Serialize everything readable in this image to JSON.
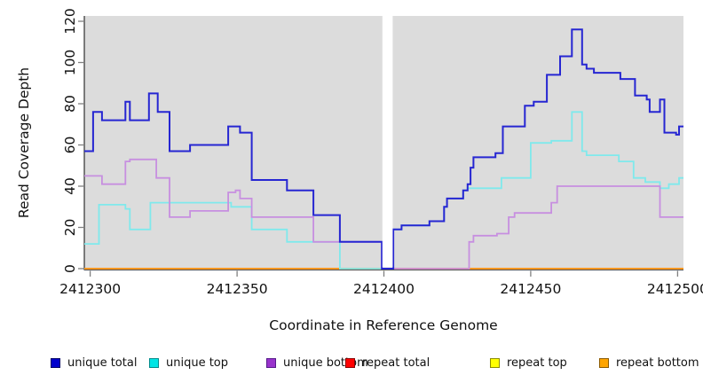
{
  "chart_data": {
    "type": "line",
    "subtype": "step-after-coverage-plot",
    "title": "",
    "xlabel": "Coordinate in Reference Genome",
    "ylabel": "Read Coverage Depth",
    "xlim": [
      2412298,
      2412502
    ],
    "ylim": [
      0,
      120
    ],
    "x_ticks": [
      2412300,
      2412350,
      2412400,
      2412450,
      2412500
    ],
    "y_ticks": [
      0,
      20,
      40,
      60,
      80,
      100,
      120
    ],
    "grid": "off",
    "panel_bg": "#dcdcdc",
    "axis_color": "#303030",
    "tick_color": "#808080",
    "tick_label_color": "#111111",
    "gap_region": {
      "x_start": 2412399.5,
      "x_end": 2412403.0,
      "color": "#ffffff",
      "note": "white masked band, no data"
    },
    "series": [
      {
        "name": "repeat top",
        "color": "#ffff00",
        "width": 1.6,
        "points": [
          [
            2412298,
            0
          ],
          [
            2412502,
            0
          ]
        ]
      },
      {
        "name": "repeat total",
        "color": "#ff0000",
        "width": 1.6,
        "points": [
          [
            2412298,
            0
          ],
          [
            2412502,
            0
          ]
        ]
      },
      {
        "name": "repeat bottom",
        "color": "#ff9e20",
        "width": 1.8,
        "points": [
          [
            2412298,
            0
          ],
          [
            2412502,
            0
          ]
        ]
      },
      {
        "name": "unique top",
        "color": "#7fe9ec",
        "width": 1.8,
        "points": [
          [
            2412298,
            12
          ],
          [
            2412303,
            31
          ],
          [
            2412312,
            29
          ],
          [
            2412313.5,
            19
          ],
          [
            2412320.5,
            32
          ],
          [
            2412348,
            30
          ],
          [
            2412355,
            19
          ],
          [
            2412367,
            13
          ],
          [
            2412385,
            0
          ],
          [
            2412403.2,
            19
          ],
          [
            2412406,
            21
          ],
          [
            2412415.5,
            23
          ],
          [
            2412420.5,
            30
          ],
          [
            2412421.5,
            34
          ],
          [
            2412427,
            38
          ],
          [
            2412428.5,
            39
          ],
          [
            2412440,
            44
          ],
          [
            2412450,
            61
          ],
          [
            2412457,
            62
          ],
          [
            2412464,
            76
          ],
          [
            2412467.5,
            57
          ],
          [
            2412469,
            55
          ],
          [
            2412480,
            52
          ],
          [
            2412485,
            44
          ],
          [
            2412489,
            42
          ],
          [
            2412494,
            39
          ],
          [
            2412497,
            41
          ],
          [
            2412500.5,
            44
          ],
          [
            2412502,
            44
          ]
        ]
      },
      {
        "name": "unique bottom",
        "color": "#c78fe0",
        "width": 1.8,
        "points": [
          [
            2412298,
            45
          ],
          [
            2412304,
            41
          ],
          [
            2412312,
            52
          ],
          [
            2412313.5,
            53
          ],
          [
            2412322.5,
            44
          ],
          [
            2412327,
            25
          ],
          [
            2412334,
            28
          ],
          [
            2412347,
            37
          ],
          [
            2412349.5,
            38
          ],
          [
            2412351,
            34
          ],
          [
            2412355,
            25
          ],
          [
            2412376,
            13
          ],
          [
            2412399.3,
            0
          ],
          [
            2412429,
            13
          ],
          [
            2412430.5,
            16
          ],
          [
            2412438.5,
            17
          ],
          [
            2412442.5,
            25
          ],
          [
            2412444.5,
            27
          ],
          [
            2412457,
            32
          ],
          [
            2412459,
            40
          ],
          [
            2412494,
            25
          ],
          [
            2412502,
            25
          ]
        ]
      },
      {
        "name": "unique total",
        "color": "#2626d2",
        "width": 2.0,
        "points": [
          [
            2412298,
            57
          ],
          [
            2412301,
            76
          ],
          [
            2412304,
            72
          ],
          [
            2412312,
            81
          ],
          [
            2412313.5,
            72
          ],
          [
            2412320,
            85
          ],
          [
            2412323,
            76
          ],
          [
            2412327,
            57
          ],
          [
            2412334,
            60
          ],
          [
            2412347,
            69
          ],
          [
            2412351,
            66
          ],
          [
            2412355,
            43
          ],
          [
            2412367,
            38
          ],
          [
            2412376,
            26
          ],
          [
            2412385,
            13
          ],
          [
            2412399.3,
            0
          ],
          [
            2412403.2,
            19
          ],
          [
            2412406,
            21
          ],
          [
            2412415.5,
            23
          ],
          [
            2412420.5,
            30
          ],
          [
            2412421.5,
            34
          ],
          [
            2412427,
            38
          ],
          [
            2412428.5,
            41
          ],
          [
            2412429.5,
            49
          ],
          [
            2412430.5,
            54
          ],
          [
            2412438,
            56
          ],
          [
            2412440.5,
            69
          ],
          [
            2412448,
            79
          ],
          [
            2412451,
            81
          ],
          [
            2412455.5,
            94
          ],
          [
            2412460,
            103
          ],
          [
            2412464,
            116
          ],
          [
            2412467.5,
            99
          ],
          [
            2412469,
            97
          ],
          [
            2412471.5,
            95
          ],
          [
            2412480.5,
            92
          ],
          [
            2412485.5,
            84
          ],
          [
            2412489.5,
            82
          ],
          [
            2412490.5,
            76
          ],
          [
            2412494,
            82
          ],
          [
            2412495.5,
            66
          ],
          [
            2412499.5,
            65
          ],
          [
            2412500.5,
            69
          ],
          [
            2412502,
            69
          ]
        ]
      }
    ],
    "legend": [
      {
        "label": "unique total",
        "fill": "#0000cc",
        "border": "#000066"
      },
      {
        "label": "unique top",
        "fill": "#00e5e5",
        "border": "#008b8b"
      },
      {
        "label": "unique bottom",
        "fill": "#9933cc",
        "border": "#551a8b"
      },
      {
        "label": "repeat total",
        "fill": "#ff0000",
        "border": "#8b0000"
      },
      {
        "label": "repeat top",
        "fill": "#ffff00",
        "border": "#8b8b00"
      },
      {
        "label": "repeat bottom",
        "fill": "#ffa500",
        "border": "#8b5a00"
      }
    ],
    "legend_position": "bottom"
  }
}
